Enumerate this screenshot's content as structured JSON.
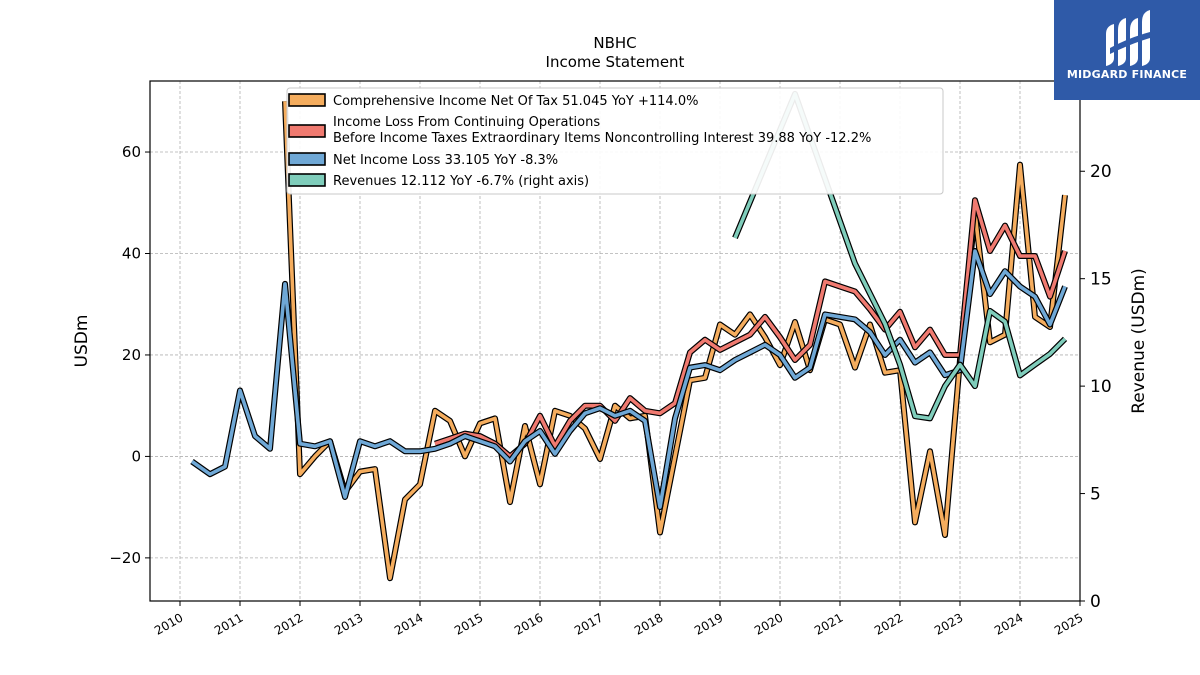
{
  "brand": {
    "name": "MIDGARD FINANCE",
    "color": "#2f5aa8"
  },
  "chart_data": {
    "type": "line",
    "title": "NBHC",
    "subtitle": "Income Statement",
    "ylabel": "USDm",
    "y2label": "Revenue (USDm)",
    "xlim": [
      2009.5,
      2025.0
    ],
    "ylim": [
      -28.5,
      74
    ],
    "y2lim": [
      0,
      24.2
    ],
    "xticks": [
      2010,
      2011,
      2012,
      2013,
      2014,
      2015,
      2016,
      2017,
      2018,
      2019,
      2020,
      2021,
      2022,
      2023,
      2024,
      2025
    ],
    "xtick_labels": [
      "2010",
      "2011",
      "2012",
      "2013",
      "2014",
      "2015",
      "2016",
      "2017",
      "2018",
      "2019",
      "2020",
      "2021",
      "2022",
      "2023",
      "2024",
      "2025"
    ],
    "yticks": [
      -20,
      0,
      20,
      40,
      60
    ],
    "ytick_labels": [
      "−20",
      "0",
      "20",
      "40",
      "60"
    ],
    "y2ticks": [
      0,
      5,
      10,
      15,
      20
    ],
    "y2tick_labels": [
      "0",
      "5",
      "10",
      "15",
      "20"
    ],
    "grid": true,
    "legend_position": "top-center",
    "series": [
      {
        "name": "Comprehensive Income Net Of Tax  51.045 YoY +114.0%",
        "color": "#f5ad5e",
        "axis": "left",
        "points": [
          [
            2011.75,
            70
          ],
          [
            2012.0,
            -3.5
          ],
          [
            2012.25,
            0
          ],
          [
            2012.5,
            3
          ],
          [
            2012.75,
            -7
          ],
          [
            2013.0,
            -3
          ],
          [
            2013.25,
            -2.5
          ],
          [
            2013.5,
            -24
          ],
          [
            2013.75,
            -8.5
          ],
          [
            2014.0,
            -5.5
          ],
          [
            2014.25,
            9
          ],
          [
            2014.5,
            7
          ],
          [
            2014.75,
            0
          ],
          [
            2015.0,
            6.5
          ],
          [
            2015.25,
            7.5
          ],
          [
            2015.5,
            -9
          ],
          [
            2015.75,
            6
          ],
          [
            2016.0,
            -5.5
          ],
          [
            2016.25,
            9
          ],
          [
            2016.5,
            8
          ],
          [
            2016.75,
            5.5
          ],
          [
            2017.0,
            -0.5
          ],
          [
            2017.25,
            10
          ],
          [
            2017.5,
            7.5
          ],
          [
            2017.75,
            8
          ],
          [
            2018.0,
            -15
          ],
          [
            2018.25,
            0
          ],
          [
            2018.5,
            15
          ],
          [
            2018.75,
            15.5
          ],
          [
            2019.0,
            26
          ],
          [
            2019.25,
            24
          ],
          [
            2019.5,
            28
          ],
          [
            2019.75,
            23.5
          ],
          [
            2020.0,
            18
          ],
          [
            2020.25,
            26.5
          ],
          [
            2020.5,
            17
          ],
          [
            2020.75,
            27
          ],
          [
            2021.0,
            26
          ],
          [
            2021.25,
            17.5
          ],
          [
            2021.5,
            26
          ],
          [
            2021.75,
            16.5
          ],
          [
            2022.0,
            17
          ],
          [
            2022.25,
            -13
          ],
          [
            2022.5,
            1
          ],
          [
            2022.75,
            -15.5
          ],
          [
            2023.0,
            19
          ],
          [
            2023.25,
            48
          ],
          [
            2023.5,
            22.5
          ],
          [
            2023.75,
            24
          ],
          [
            2024.0,
            57.5
          ],
          [
            2024.25,
            27.5
          ],
          [
            2024.5,
            25.5
          ],
          [
            2024.75,
            51.5
          ]
        ]
      },
      {
        "name": "Income Loss From Continuing Operations Before Income Taxes Extraordinary Items Noncontrolling Interest  39.88 YoY -12.2%",
        "name_lines": [
          "Income Loss From Continuing Operations",
          "Before Income Taxes Extraordinary Items Noncontrolling Interest  39.88 YoY -12.2%"
        ],
        "color": "#f07a70",
        "axis": "left",
        "points": [
          [
            2014.25,
            2.5
          ],
          [
            2014.5,
            3.5
          ],
          [
            2014.75,
            4.5
          ],
          [
            2015.0,
            4
          ],
          [
            2015.25,
            2.5
          ],
          [
            2015.5,
            0
          ],
          [
            2015.75,
            2.5
          ],
          [
            2016.0,
            8
          ],
          [
            2016.25,
            2
          ],
          [
            2016.5,
            7
          ],
          [
            2016.75,
            10
          ],
          [
            2017.0,
            10
          ],
          [
            2017.25,
            7
          ],
          [
            2017.5,
            11.5
          ],
          [
            2017.75,
            9
          ],
          [
            2018.0,
            8.5
          ],
          [
            2018.25,
            10.5
          ],
          [
            2018.5,
            20.5
          ],
          [
            2018.75,
            23
          ],
          [
            2019.0,
            21
          ],
          [
            2019.25,
            22.5
          ],
          [
            2019.5,
            24
          ],
          [
            2019.75,
            27.5
          ],
          [
            2020.0,
            23.5
          ],
          [
            2020.25,
            19
          ],
          [
            2020.5,
            22
          ],
          [
            2020.75,
            34.5
          ],
          [
            2021.0,
            33.5
          ],
          [
            2021.25,
            32.5
          ],
          [
            2021.5,
            29
          ],
          [
            2021.75,
            25
          ],
          [
            2022.0,
            28.5
          ],
          [
            2022.25,
            21.5
          ],
          [
            2022.5,
            25
          ],
          [
            2022.75,
            20
          ],
          [
            2023.0,
            20
          ],
          [
            2023.25,
            50.5
          ],
          [
            2023.5,
            40.5
          ],
          [
            2023.75,
            45.5
          ],
          [
            2024.0,
            39.5
          ],
          [
            2024.25,
            39.5
          ],
          [
            2024.5,
            31.5
          ],
          [
            2024.75,
            40.5
          ]
        ]
      },
      {
        "name": "Net Income Loss  33.105 YoY -8.3%",
        "color": "#6fa8d6",
        "axis": "left",
        "points": [
          [
            2010.2,
            -1
          ],
          [
            2010.5,
            -3.5
          ],
          [
            2010.75,
            -2
          ],
          [
            2011.0,
            13
          ],
          [
            2011.25,
            4
          ],
          [
            2011.5,
            1.5
          ],
          [
            2011.75,
            34
          ],
          [
            2012.0,
            2.5
          ],
          [
            2012.25,
            2
          ],
          [
            2012.5,
            3
          ],
          [
            2012.75,
            -8
          ],
          [
            2013.0,
            3
          ],
          [
            2013.25,
            2
          ],
          [
            2013.5,
            3
          ],
          [
            2013.75,
            1
          ],
          [
            2014.0,
            1
          ],
          [
            2014.25,
            1.5
          ],
          [
            2014.5,
            2.5
          ],
          [
            2014.75,
            4
          ],
          [
            2015.0,
            3
          ],
          [
            2015.25,
            2
          ],
          [
            2015.5,
            -1
          ],
          [
            2015.75,
            3
          ],
          [
            2016.0,
            5
          ],
          [
            2016.25,
            0.5
          ],
          [
            2016.5,
            5
          ],
          [
            2016.75,
            8.5
          ],
          [
            2017.0,
            9.5
          ],
          [
            2017.25,
            8
          ],
          [
            2017.5,
            9
          ],
          [
            2017.75,
            7
          ],
          [
            2018.0,
            -10
          ],
          [
            2018.25,
            7.5
          ],
          [
            2018.5,
            17.5
          ],
          [
            2018.75,
            18
          ],
          [
            2019.0,
            17
          ],
          [
            2019.25,
            19
          ],
          [
            2019.5,
            20.5
          ],
          [
            2019.75,
            22
          ],
          [
            2020.0,
            20
          ],
          [
            2020.25,
            15.5
          ],
          [
            2020.5,
            17.5
          ],
          [
            2020.75,
            28
          ],
          [
            2021.0,
            27.5
          ],
          [
            2021.25,
            27
          ],
          [
            2021.5,
            24.5
          ],
          [
            2021.75,
            20
          ],
          [
            2022.0,
            23
          ],
          [
            2022.25,
            18.5
          ],
          [
            2022.5,
            20.5
          ],
          [
            2022.75,
            16
          ],
          [
            2023.0,
            17
          ],
          [
            2023.25,
            40.5
          ],
          [
            2023.5,
            32
          ],
          [
            2023.75,
            36.5
          ],
          [
            2024.0,
            33.5
          ],
          [
            2024.25,
            31.5
          ],
          [
            2024.5,
            26
          ],
          [
            2024.75,
            33.5
          ]
        ]
      },
      {
        "name": "Revenues  12.112 YoY -6.7% (right axis)",
        "color": "#7fcdbb",
        "axis": "right",
        "points": [
          [
            2019.25,
            16.9
          ],
          [
            2020.25,
            23.6
          ],
          [
            2021.25,
            15.7
          ],
          [
            2021.75,
            12.9
          ],
          [
            2022.0,
            11
          ],
          [
            2022.25,
            8.6
          ],
          [
            2022.5,
            8.5
          ],
          [
            2022.75,
            10
          ],
          [
            2023.0,
            11
          ],
          [
            2023.25,
            10
          ],
          [
            2023.5,
            13.5
          ],
          [
            2023.75,
            13
          ],
          [
            2024.0,
            10.5
          ],
          [
            2024.25,
            11
          ],
          [
            2024.5,
            11.5
          ],
          [
            2024.75,
            12.2
          ]
        ]
      }
    ]
  }
}
